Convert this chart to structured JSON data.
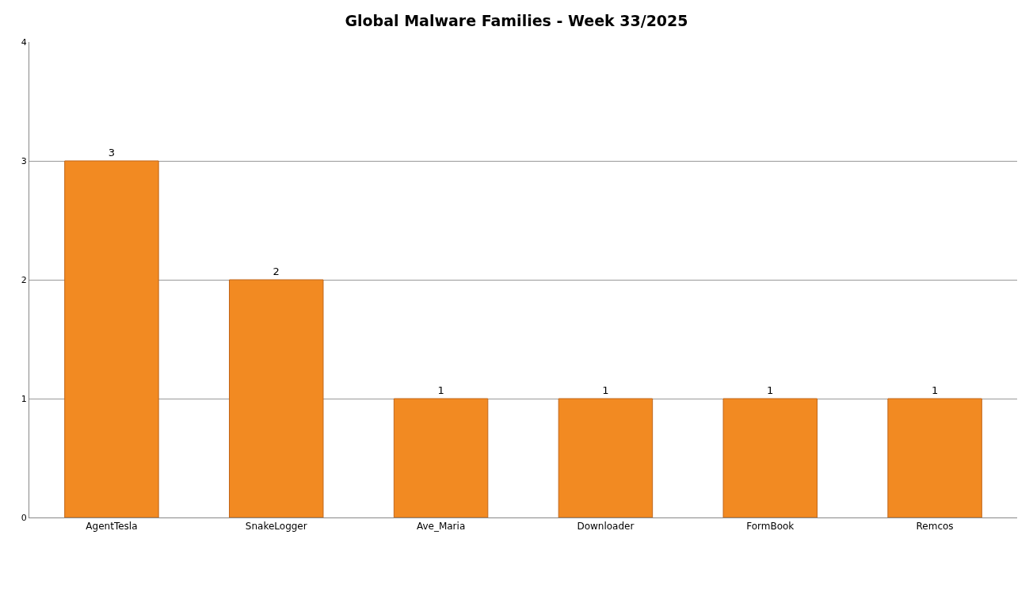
{
  "chart_data": {
    "type": "bar",
    "title": "Global Malware Families - Week 33/2025",
    "categories": [
      "AgentTesla",
      "SnakeLogger",
      "Ave_Maria",
      "Downloader",
      "FormBook",
      "Remcos"
    ],
    "values": [
      3,
      2,
      1,
      1,
      1,
      1
    ],
    "color": "#f28a22",
    "ylim": [
      0,
      4
    ],
    "yticks": [
      0,
      1,
      2,
      3,
      4
    ],
    "grid": "y",
    "data_labels": true
  }
}
